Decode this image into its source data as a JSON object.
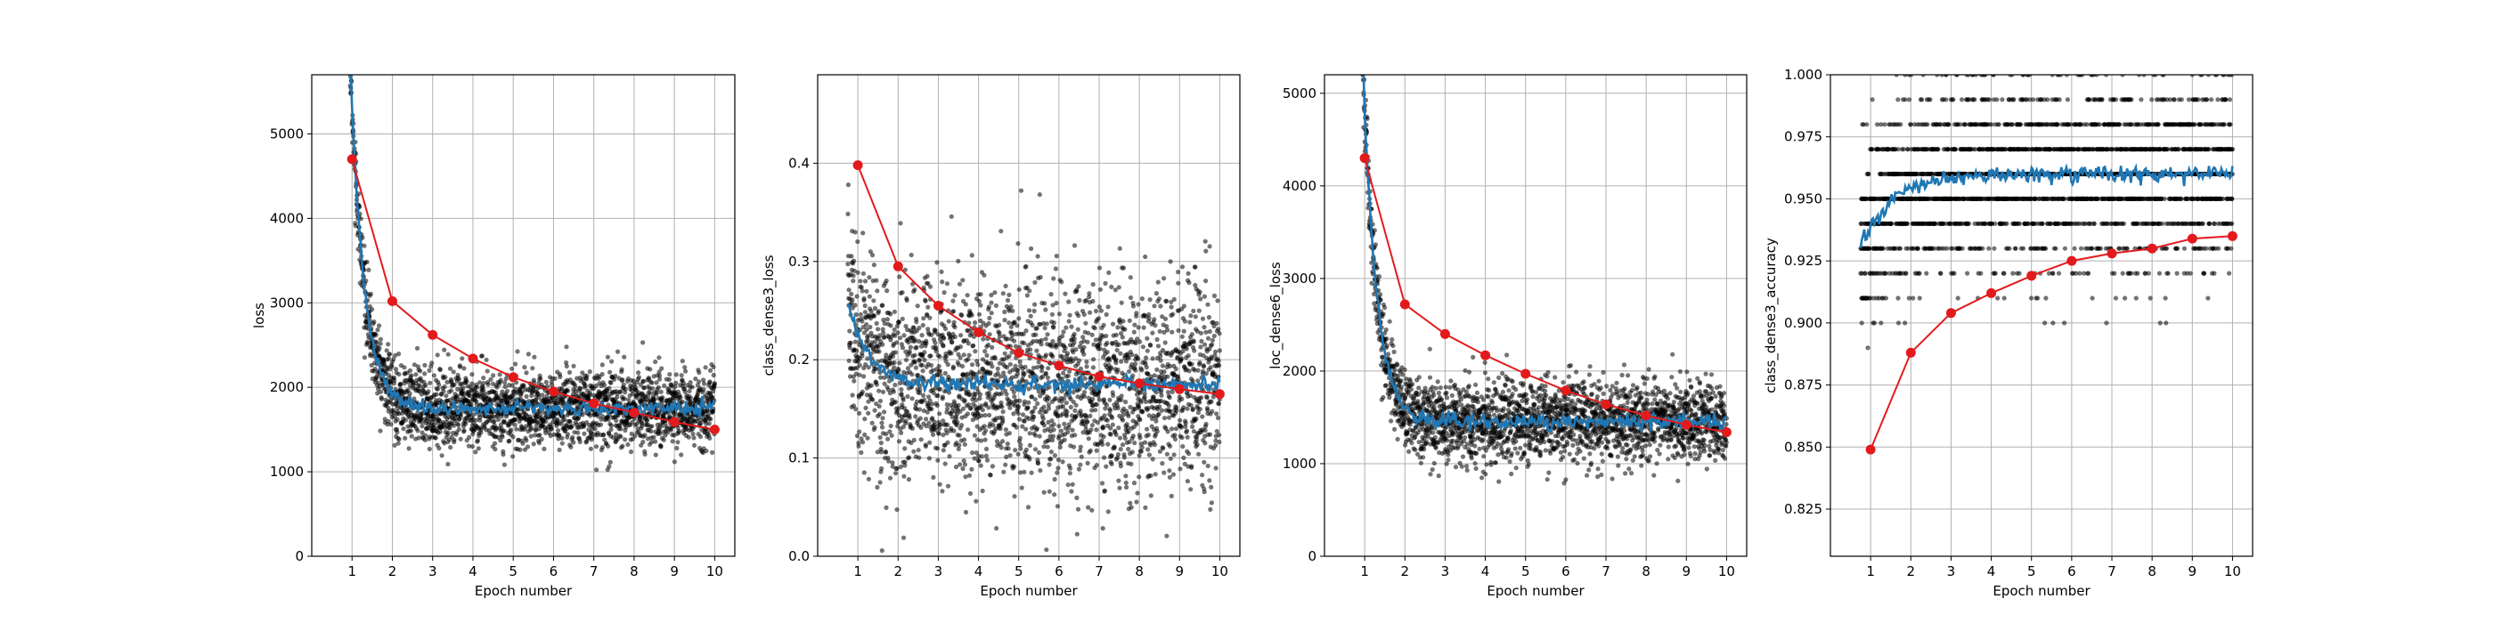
{
  "figure": {
    "background": "#ffffff"
  },
  "colors": {
    "points": "#000000",
    "smooth": "#1f77b4",
    "epoch": "#e31a1c",
    "grid": "#b0b0b0"
  },
  "chart_data": [
    {
      "type": "scatter",
      "xlabel": "Epoch number",
      "ylabel": "loss",
      "xlim": [
        0,
        10.5
      ],
      "ylim": [
        0,
        5700
      ],
      "xticks": [
        1,
        2,
        3,
        4,
        5,
        6,
        7,
        8,
        9,
        10
      ],
      "yticks": [
        0,
        1000,
        2000,
        3000,
        4000,
        5000
      ],
      "ytick_labels": [
        "0",
        "1000",
        "2000",
        "3000",
        "4000",
        "5000"
      ],
      "grid": true,
      "series": [
        {
          "kind": "scatter",
          "color": "#000000",
          "x_range": [
            0.75,
            10
          ],
          "n": 2400,
          "curve": {
            "a": 1750,
            "b": 3600,
            "k": 3.0,
            "c": -1
          },
          "noise": 230
        },
        {
          "kind": "line",
          "color": "#1f77b4",
          "x_range": [
            0.75,
            10
          ],
          "curve": {
            "a": 1750,
            "b": 3600,
            "k": 3.0,
            "c": -1
          }
        },
        {
          "kind": "line-markers",
          "color": "#e31a1c",
          "x": [
            1,
            2,
            3,
            4,
            5,
            6,
            7,
            8,
            9,
            10
          ],
          "y": [
            4700,
            3020,
            2620,
            2340,
            2120,
            1950,
            1810,
            1700,
            1590,
            1500
          ]
        }
      ]
    },
    {
      "type": "scatter",
      "xlabel": "Epoch number",
      "ylabel": "class_dense3_loss",
      "xlim": [
        0,
        10.5
      ],
      "ylim": [
        0,
        0.49
      ],
      "xticks": [
        1,
        2,
        3,
        4,
        5,
        6,
        7,
        8,
        9,
        10
      ],
      "yticks": [
        0,
        0.1,
        0.2,
        0.3,
        0.4
      ],
      "ytick_labels": [
        "0.0",
        "0.1",
        "0.2",
        "0.3",
        "0.4"
      ],
      "grid": true,
      "series": [
        {
          "kind": "scatter",
          "color": "#000000",
          "x_range": [
            0.75,
            10
          ],
          "n": 2400,
          "curve": {
            "a": 0.175,
            "b": 0.25,
            "k": 2.0,
            "c": -0.2
          },
          "noise": 0.052
        },
        {
          "kind": "line",
          "color": "#1f77b4",
          "x_range": [
            0.75,
            10
          ],
          "curve": {
            "a": 0.175,
            "b": 0.25,
            "k": 2.0,
            "c": -0.2
          }
        },
        {
          "kind": "line-markers",
          "color": "#e31a1c",
          "x": [
            1,
            2,
            3,
            4,
            5,
            6,
            7,
            8,
            9,
            10
          ],
          "y": [
            0.398,
            0.295,
            0.255,
            0.228,
            0.207,
            0.194,
            0.183,
            0.176,
            0.17,
            0.165
          ]
        }
      ]
    },
    {
      "type": "scatter",
      "xlabel": "Epoch number",
      "ylabel": "loc_dense6_loss",
      "xlim": [
        0,
        10.5
      ],
      "ylim": [
        0,
        5200
      ],
      "xticks": [
        1,
        2,
        3,
        4,
        5,
        6,
        7,
        8,
        9,
        10
      ],
      "yticks": [
        0,
        1000,
        2000,
        3000,
        4000,
        5000
      ],
      "ytick_labels": [
        "0",
        "1000",
        "2000",
        "3000",
        "4000",
        "5000"
      ],
      "grid": true,
      "series": [
        {
          "kind": "scatter",
          "color": "#000000",
          "x_range": [
            0.75,
            10
          ],
          "n": 2400,
          "curve": {
            "a": 1450,
            "b": 3400,
            "k": 3.0,
            "c": -1
          },
          "noise": 220
        },
        {
          "kind": "line",
          "color": "#1f77b4",
          "x_range": [
            0.75,
            10
          ],
          "curve": {
            "a": 1450,
            "b": 3400,
            "k": 3.0,
            "c": -1
          }
        },
        {
          "kind": "line-markers",
          "color": "#e31a1c",
          "x": [
            1,
            2,
            3,
            4,
            5,
            6,
            7,
            8,
            9,
            10
          ],
          "y": [
            4300,
            2720,
            2400,
            2170,
            1970,
            1790,
            1640,
            1520,
            1420,
            1340
          ]
        }
      ]
    },
    {
      "type": "scatter",
      "xlabel": "Epoch number",
      "ylabel": "class_dense3_accuracy",
      "xlim": [
        0,
        10.5
      ],
      "ylim": [
        0.806,
        1.0
      ],
      "xticks": [
        1,
        2,
        3,
        4,
        5,
        6,
        7,
        8,
        9,
        10
      ],
      "yticks": [
        0.825,
        0.85,
        0.875,
        0.9,
        0.925,
        0.95,
        0.975,
        1.0
      ],
      "ytick_labels": [
        "0.825",
        "0.850",
        "0.875",
        "0.900",
        "0.925",
        "0.950",
        "0.975",
        "1.000"
      ],
      "grid": true,
      "series": [
        {
          "kind": "scatter-quantized",
          "color": "#000000",
          "x_range": [
            0.75,
            10
          ],
          "n": 2400,
          "curve": {
            "a": 0.96,
            "b": -0.13,
            "k": 1.3,
            "c": 0.4
          },
          "noise": 0.02,
          "step": 0.01
        },
        {
          "kind": "line",
          "color": "#1f77b4",
          "x_range": [
            0.75,
            10
          ],
          "curve": {
            "a": 0.96,
            "b": -0.13,
            "k": 1.3,
            "c": 0.4
          }
        },
        {
          "kind": "line-markers",
          "color": "#e31a1c",
          "x": [
            1,
            2,
            3,
            4,
            5,
            6,
            7,
            8,
            9,
            10
          ],
          "y": [
            0.849,
            0.888,
            0.904,
            0.912,
            0.919,
            0.925,
            0.928,
            0.93,
            0.934,
            0.935
          ]
        }
      ]
    }
  ]
}
